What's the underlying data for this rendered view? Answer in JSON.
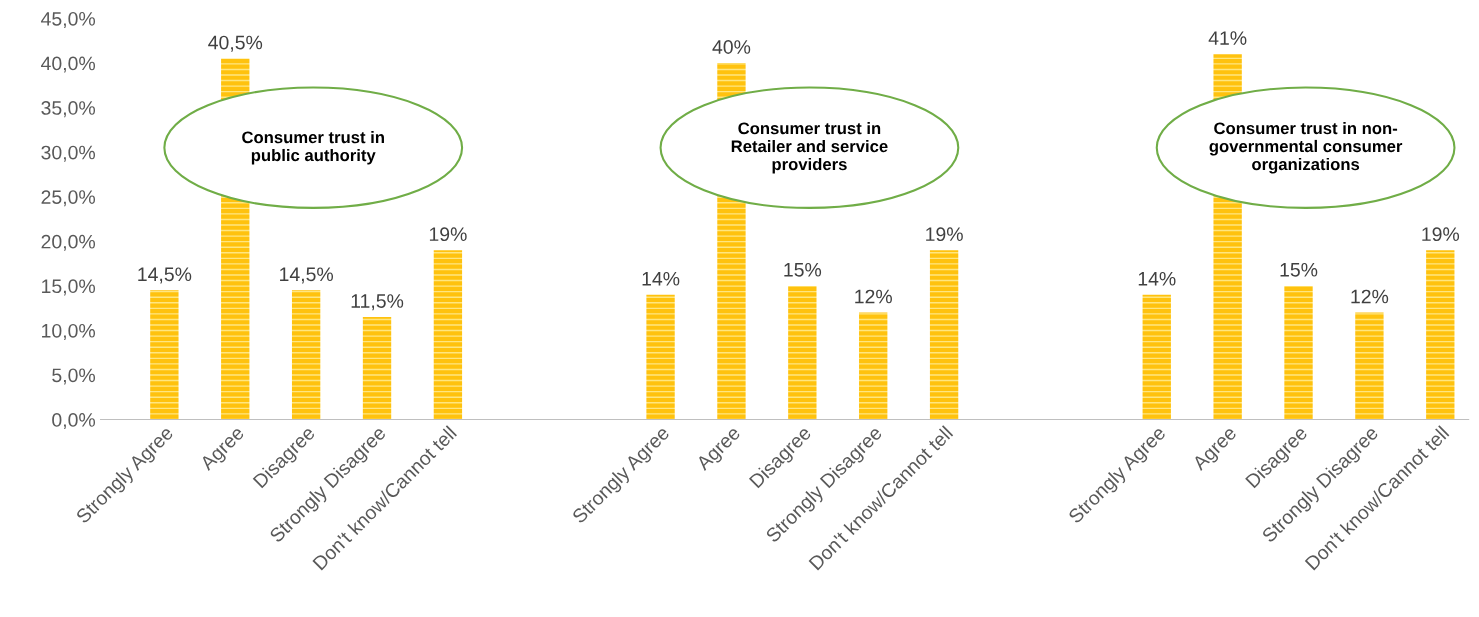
{
  "chart_data": {
    "type": "bar",
    "categories": [
      "Strongly Agree",
      "Agree",
      "Disagree",
      "Strongly Disagree",
      "Don't know/Cannot tell",
      null,
      null,
      "Strongly Agree",
      "Agree",
      "Disagree",
      "Strongly Disagree",
      "Don't know/Cannot tell",
      null,
      null,
      "Strongly Agree",
      "Agree",
      "Disagree",
      "Strongly Disagree",
      "Don't know/Cannot tell"
    ],
    "values": [
      14.5,
      40.5,
      14.5,
      11.5,
      19,
      null,
      null,
      14,
      40,
      15,
      12,
      19,
      null,
      null,
      14,
      41,
      15,
      12,
      19
    ],
    "value_labels": [
      "14,5%",
      "40,5%",
      "14,5%",
      "11,5%",
      "19%",
      null,
      null,
      "14%",
      "40%",
      "15%",
      "12%",
      "19%",
      null,
      null,
      "14%",
      "41%",
      "15%",
      "12%",
      "19%"
    ],
    "color": "#ffc20e",
    "ylim": [
      0,
      45
    ],
    "yticks": [
      {
        "value": 0,
        "label": "0,0%"
      },
      {
        "value": 5,
        "label": "5,0%"
      },
      {
        "value": 10,
        "label": "10,0%"
      },
      {
        "value": 15,
        "label": "15,0%"
      },
      {
        "value": 20,
        "label": "20,0%"
      },
      {
        "value": 25,
        "label": "25,0%"
      },
      {
        "value": 30,
        "label": "30,0%"
      },
      {
        "value": 35,
        "label": "35,0%"
      },
      {
        "value": 40,
        "label": "40,0%"
      },
      {
        "value": 45,
        "label": "45,0%"
      }
    ],
    "annotations": [
      "Consumer trust in\npublic authority",
      "Consumer trust in\nRetailer and service\nproviders",
      "Consumer trust in non-\ngovernmental consumer\norganizations"
    ],
    "grid": false,
    "legend": false
  }
}
